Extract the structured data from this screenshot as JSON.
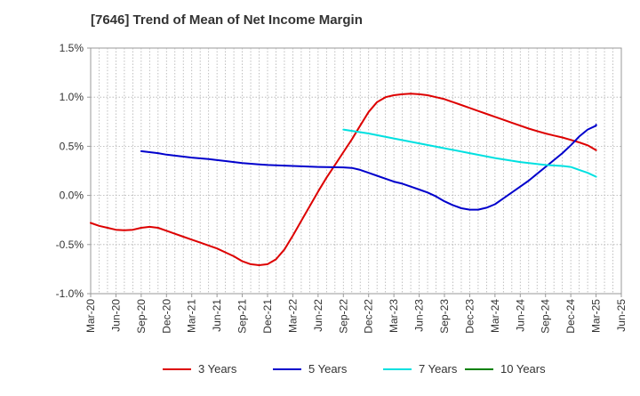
{
  "chart_data": {
    "type": "line",
    "title": "[7646]  Trend of Mean of Net Income Margin",
    "xlabel": "",
    "ylabel": "",
    "x": [
      "Mar-20",
      "Jun-20",
      "Sep-20",
      "Dec-20",
      "Mar-21",
      "Jun-21",
      "Sep-21",
      "Dec-21",
      "Mar-22",
      "Jun-22",
      "Sep-22",
      "Dec-22",
      "Mar-23",
      "Jun-23",
      "Sep-23",
      "Dec-23",
      "Mar-24",
      "Jun-24",
      "Sep-24",
      "Dec-24",
      "Mar-25",
      "Jun-25"
    ],
    "ylim": [
      -1.0,
      1.5
    ],
    "yticks": [
      "1.5%",
      "1.0%",
      "0.5%",
      "0.0%",
      "-0.5%",
      "-1.0%"
    ],
    "ytick_values": [
      1.5,
      1.0,
      0.5,
      0.0,
      -0.5,
      -1.0
    ],
    "grid": true,
    "legend_position": "bottom",
    "series": [
      {
        "name": "3 Years",
        "color": "#dd0000",
        "points": [
          [
            "Mar-20",
            -0.28
          ],
          [
            "Apr-20",
            -0.31
          ],
          [
            "May-20",
            -0.33
          ],
          [
            "Jun-20",
            -0.35
          ],
          [
            "Jul-20",
            -0.355
          ],
          [
            "Aug-20",
            -0.35
          ],
          [
            "Sep-20",
            -0.33
          ],
          [
            "Oct-20",
            -0.32
          ],
          [
            "Nov-20",
            -0.33
          ],
          [
            "Dec-20",
            -0.36
          ],
          [
            "Jan-21",
            -0.39
          ],
          [
            "Feb-21",
            -0.42
          ],
          [
            "Mar-21",
            -0.45
          ],
          [
            "Apr-21",
            -0.48
          ],
          [
            "May-21",
            -0.51
          ],
          [
            "Jun-21",
            -0.54
          ],
          [
            "Jul-21",
            -0.58
          ],
          [
            "Aug-21",
            -0.62
          ],
          [
            "Sep-21",
            -0.67
          ],
          [
            "Oct-21",
            -0.7
          ],
          [
            "Nov-21",
            -0.71
          ],
          [
            "Dec-21",
            -0.7
          ],
          [
            "Jan-22",
            -0.65
          ],
          [
            "Feb-22",
            -0.55
          ],
          [
            "Mar-22",
            -0.41
          ],
          [
            "Apr-22",
            -0.26
          ],
          [
            "May-22",
            -0.11
          ],
          [
            "Jun-22",
            0.04
          ],
          [
            "Jul-22",
            0.18
          ],
          [
            "Aug-22",
            0.31
          ],
          [
            "Sep-22",
            0.44
          ],
          [
            "Oct-22",
            0.57
          ],
          [
            "Nov-22",
            0.71
          ],
          [
            "Dec-22",
            0.85
          ],
          [
            "Jan-23",
            0.95
          ],
          [
            "Feb-23",
            1.0
          ],
          [
            "Mar-23",
            1.02
          ],
          [
            "Apr-23",
            1.03
          ],
          [
            "May-23",
            1.035
          ],
          [
            "Jun-23",
            1.03
          ],
          [
            "Jul-23",
            1.02
          ],
          [
            "Aug-23",
            1.0
          ],
          [
            "Sep-23",
            0.98
          ],
          [
            "Oct-23",
            0.95
          ],
          [
            "Nov-23",
            0.92
          ],
          [
            "Dec-23",
            0.89
          ],
          [
            "Jan-24",
            0.86
          ],
          [
            "Feb-24",
            0.83
          ],
          [
            "Mar-24",
            0.8
          ],
          [
            "Apr-24",
            0.77
          ],
          [
            "May-24",
            0.74
          ],
          [
            "Jun-24",
            0.71
          ],
          [
            "Jul-24",
            0.68
          ],
          [
            "Aug-24",
            0.655
          ],
          [
            "Sep-24",
            0.63
          ],
          [
            "Oct-24",
            0.61
          ],
          [
            "Nov-24",
            0.59
          ],
          [
            "Dec-24",
            0.565
          ],
          [
            "Jan-25",
            0.54
          ],
          [
            "Feb-25",
            0.51
          ],
          [
            "Mar-25",
            0.46
          ]
        ]
      },
      {
        "name": "5 Years",
        "color": "#0000cc",
        "points": [
          [
            "Mar-20",
            null
          ],
          [
            "Sep-20",
            0.45
          ],
          [
            "Oct-20",
            0.44
          ],
          [
            "Nov-20",
            0.43
          ],
          [
            "Dec-20",
            0.415
          ],
          [
            "Feb-21",
            0.395
          ],
          [
            "Mar-21",
            0.385
          ],
          [
            "May-21",
            0.37
          ],
          [
            "Jun-21",
            0.36
          ],
          [
            "Aug-21",
            0.34
          ],
          [
            "Sep-21",
            0.33
          ],
          [
            "Nov-21",
            0.315
          ],
          [
            "Dec-21",
            0.31
          ],
          [
            "Mar-22",
            0.3
          ],
          [
            "Jun-22",
            0.29
          ],
          [
            "Sep-22",
            0.285
          ],
          [
            "Oct-22",
            0.28
          ],
          [
            "Nov-22",
            0.26
          ],
          [
            "Dec-22",
            0.23
          ],
          [
            "Jan-23",
            0.2
          ],
          [
            "Feb-23",
            0.17
          ],
          [
            "Mar-23",
            0.14
          ],
          [
            "Apr-23",
            0.12
          ],
          [
            "May-23",
            0.09
          ],
          [
            "Jun-23",
            0.06
          ],
          [
            "Jul-23",
            0.03
          ],
          [
            "Aug-23",
            -0.01
          ],
          [
            "Sep-23",
            -0.06
          ],
          [
            "Oct-23",
            -0.1
          ],
          [
            "Nov-23",
            -0.13
          ],
          [
            "Dec-23",
            -0.145
          ],
          [
            "Jan-24",
            -0.145
          ],
          [
            "Feb-24",
            -0.125
          ],
          [
            "Mar-24",
            -0.09
          ],
          [
            "Apr-24",
            -0.03
          ],
          [
            "May-24",
            0.03
          ],
          [
            "Jun-24",
            0.09
          ],
          [
            "Jul-24",
            0.15
          ],
          [
            "Aug-24",
            0.22
          ],
          [
            "Sep-24",
            0.29
          ],
          [
            "Oct-24",
            0.36
          ],
          [
            "Nov-24",
            0.43
          ],
          [
            "Dec-24",
            0.51
          ],
          [
            "Jan-25",
            0.6
          ],
          [
            "Feb-25",
            0.67
          ],
          [
            "Mar-25",
            0.71
          ],
          [
            "Mar-25",
            0.72
          ]
        ]
      },
      {
        "name": "7 Years",
        "color": "#00e0e0",
        "points": [
          [
            "Mar-20",
            null
          ],
          [
            "Sep-22",
            0.67
          ],
          [
            "Dec-22",
            0.63
          ],
          [
            "Mar-23",
            0.58
          ],
          [
            "Jun-23",
            0.53
          ],
          [
            "Sep-23",
            0.48
          ],
          [
            "Dec-23",
            0.43
          ],
          [
            "Mar-24",
            0.38
          ],
          [
            "Jun-24",
            0.34
          ],
          [
            "Sep-24",
            0.31
          ],
          [
            "Nov-24",
            0.3
          ],
          [
            "Dec-24",
            0.29
          ],
          [
            "Jan-25",
            0.26
          ],
          [
            "Feb-25",
            0.23
          ],
          [
            "Mar-25",
            0.19
          ]
        ]
      },
      {
        "name": "10 Years",
        "color": "#008000",
        "points": []
      }
    ]
  }
}
